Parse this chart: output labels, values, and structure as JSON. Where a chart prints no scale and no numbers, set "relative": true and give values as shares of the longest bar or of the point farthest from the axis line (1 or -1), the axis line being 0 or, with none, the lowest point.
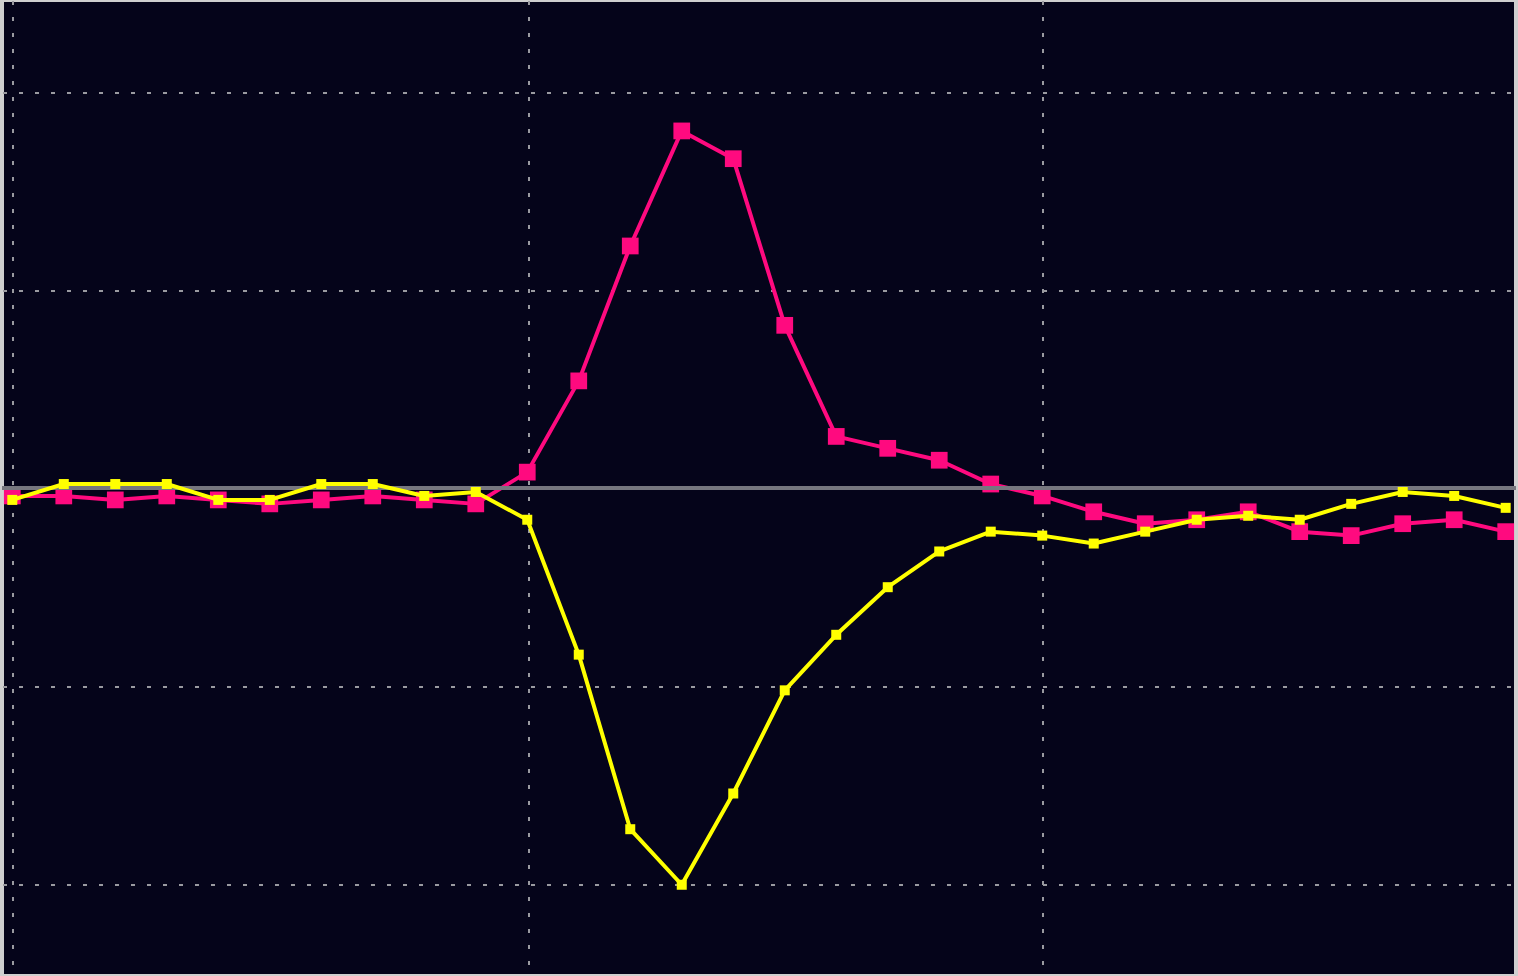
{
  "chart_data": {
    "type": "line",
    "relative": true,
    "categories": [
      null,
      null,
      null,
      null,
      null,
      null,
      null,
      null,
      null,
      null,
      null,
      null,
      null,
      null,
      null,
      null,
      null,
      null,
      null,
      null,
      null,
      null,
      null,
      null,
      null,
      null,
      null,
      null,
      null,
      null
    ],
    "series": [
      {
        "color": "#ff0a7f",
        "values": [
          -0.02,
          -0.02,
          -0.03,
          -0.02,
          -0.03,
          -0.04,
          -0.03,
          -0.02,
          -0.03,
          -0.04,
          0.04,
          0.27,
          0.61,
          0.9,
          0.83,
          0.41,
          0.13,
          0.1,
          0.07,
          0.01,
          -0.02,
          -0.06,
          -0.09,
          -0.08,
          -0.06,
          -0.11,
          -0.12,
          -0.09,
          -0.08,
          -0.11
        ]
      },
      {
        "color": "#ffff00",
        "values": [
          -0.03,
          0.01,
          0.01,
          0.01,
          -0.03,
          -0.03,
          0.01,
          0.01,
          -0.02,
          -0.01,
          -0.08,
          -0.42,
          -0.86,
          -1,
          -0.77,
          -0.51,
          -0.37,
          -0.25,
          -0.16,
          -0.11,
          -0.12,
          -0.14,
          -0.11,
          -0.08,
          -0.07,
          -0.08,
          -0.04,
          -0.01,
          -0.02,
          -0.05
        ]
      }
    ],
    "grid": true,
    "marker": "square",
    "line_style": "solid"
  }
}
